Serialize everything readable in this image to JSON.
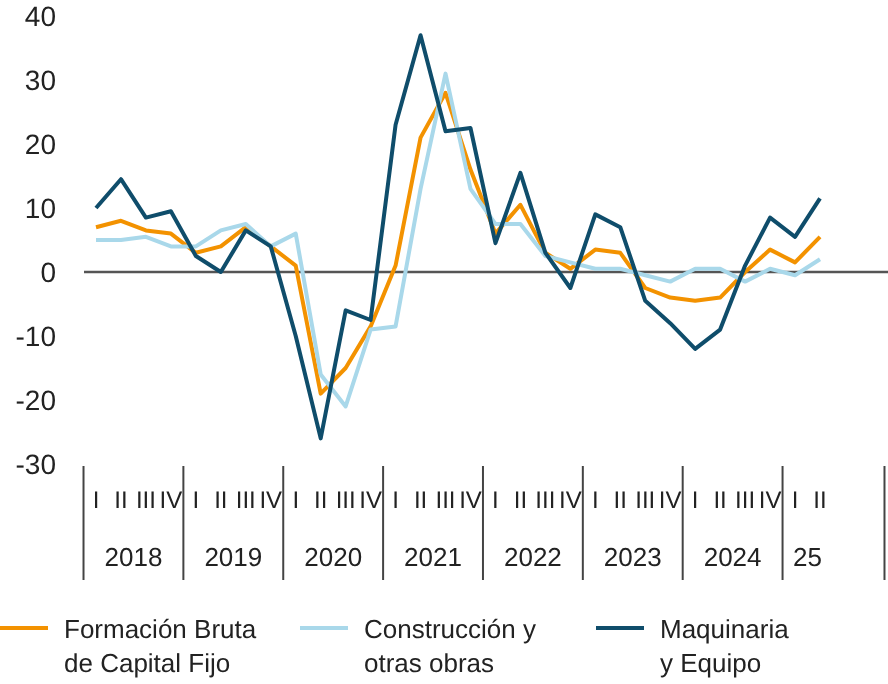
{
  "chart_data": {
    "type": "line",
    "categories": [
      "I",
      "II",
      "III",
      "IV",
      "I",
      "II",
      "III",
      "IV",
      "I",
      "II",
      "III",
      "IV",
      "I",
      "II",
      "III",
      "IV",
      "I",
      "II",
      "III",
      "IV",
      "I",
      "II",
      "III",
      "IV",
      "I",
      "II",
      "III",
      "IV",
      "I",
      "II"
    ],
    "annotations": [
      "2018",
      "2019",
      "2020",
      "2021",
      "2022",
      "2023",
      "2024",
      "25"
    ],
    "ylim": [
      -30,
      40
    ],
    "yticks": [
      -30,
      -20,
      -10,
      0,
      10,
      20,
      30,
      40
    ],
    "ref_lines": [
      {
        "axis": "y",
        "value": 0,
        "color": "#555555"
      }
    ],
    "legend": "bottom",
    "grid": false,
    "marker": "none",
    "line_style": "solid",
    "series": [
      {
        "name": "Formación Bruta de Capital Fijo",
        "color": "#f39200",
        "values": [
          7,
          8,
          6.5,
          6,
          3,
          4,
          7,
          4,
          1,
          -19,
          -15,
          -8.5,
          1,
          21,
          28,
          16,
          6,
          10.5,
          3,
          0.5,
          3.5,
          3,
          -2.5,
          -4,
          -4.5,
          -4,
          0,
          3.5,
          1.5,
          5.5
        ]
      },
      {
        "name": "Construcción y otras obras",
        "color": "#a9d8ea",
        "values": [
          5,
          5,
          5.5,
          4,
          4,
          6.5,
          7.5,
          4,
          6,
          -16,
          -21,
          -9,
          -8.5,
          13,
          31,
          13,
          7.5,
          7.5,
          2.5,
          1.5,
          0.5,
          0.5,
          -0.5,
          -1.5,
          0.5,
          0.5,
          -1.5,
          0.5,
          -0.5,
          2
        ]
      },
      {
        "name": "Maquinaria y Equipo",
        "color": "#0f4d6b",
        "values": [
          10,
          14.5,
          8.5,
          9.5,
          2.5,
          0,
          6.5,
          4,
          -10,
          -26,
          -6,
          -7.5,
          23,
          37,
          22,
          22.5,
          4.5,
          15.5,
          3,
          -2.5,
          9,
          7,
          -4.5,
          -8,
          -12,
          -9,
          1,
          8.5,
          5.5,
          11.5
        ]
      }
    ]
  }
}
